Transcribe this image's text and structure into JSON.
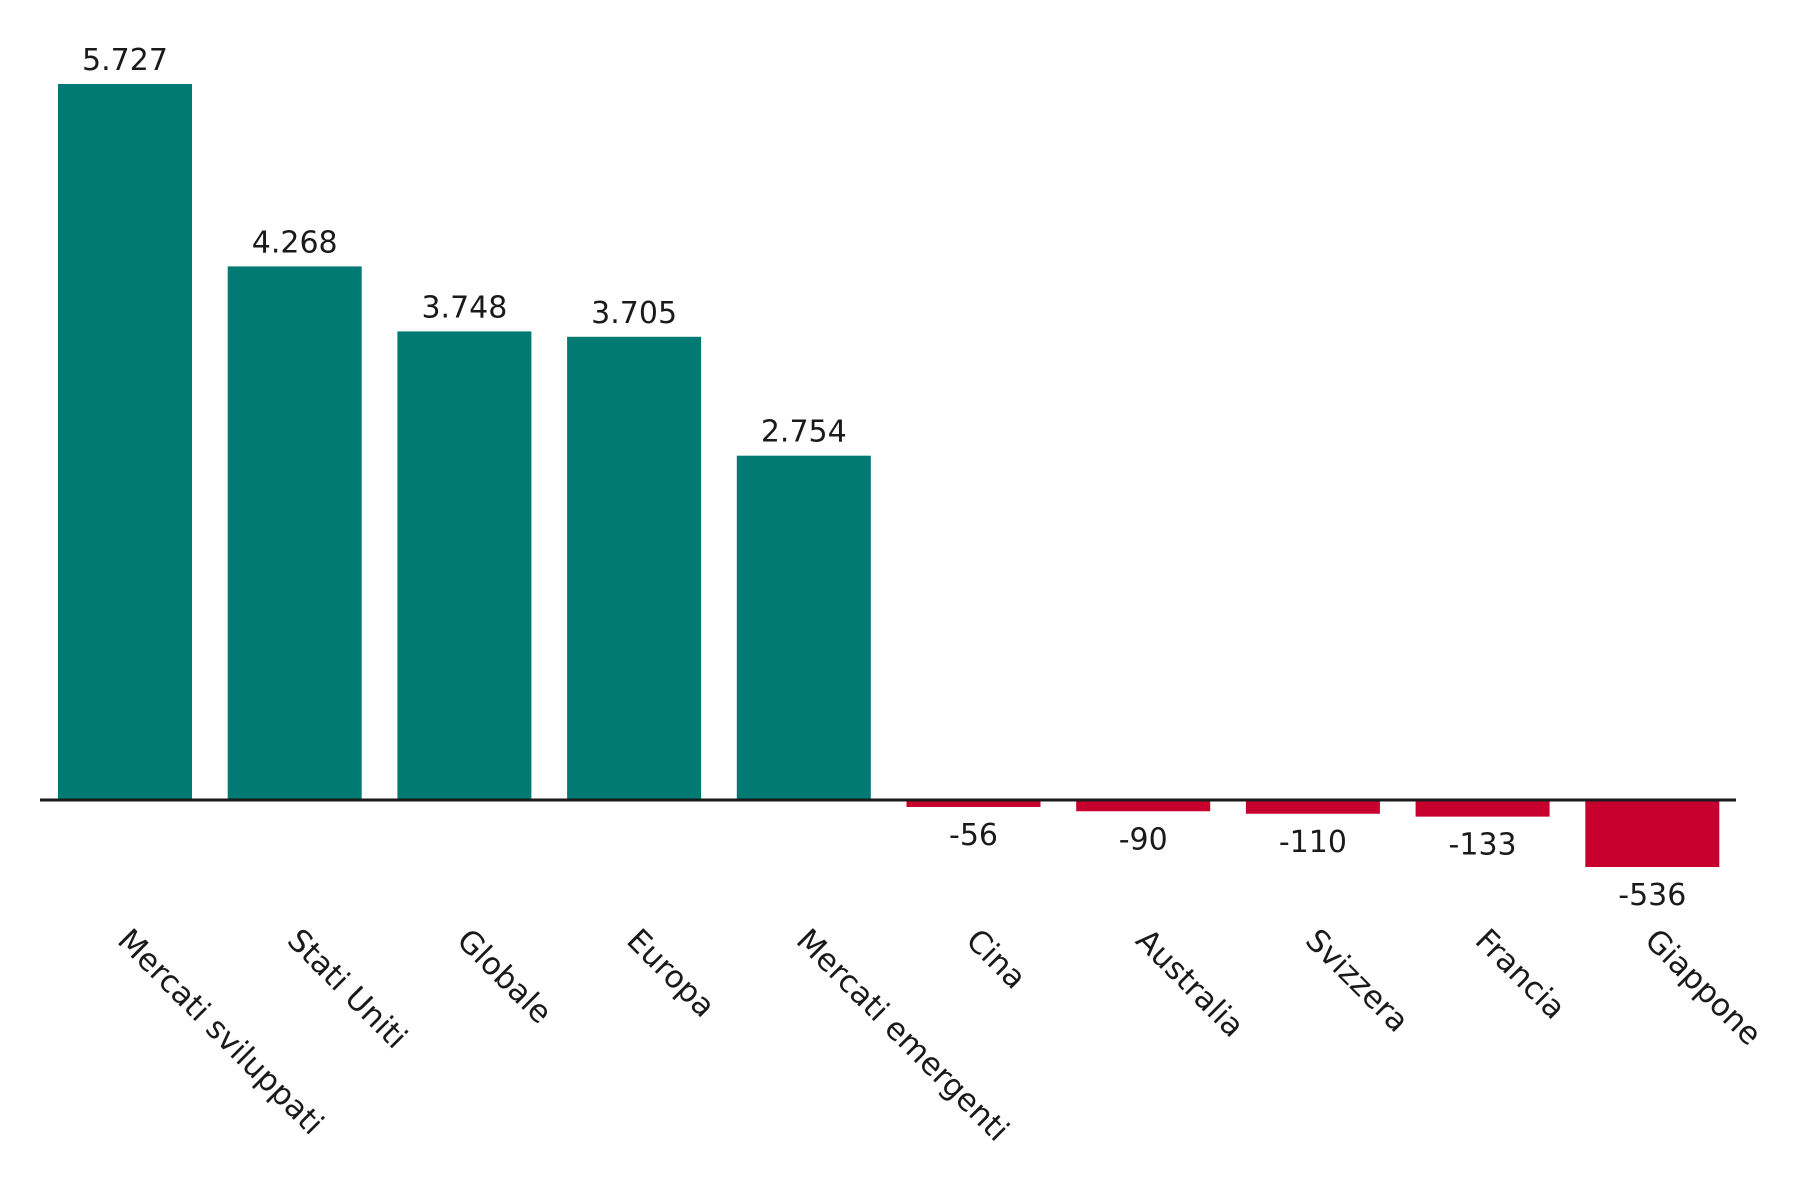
{
  "colors": {
    "positive": "#007a73",
    "negative": "#c8002e",
    "axis": "#1a1a1a",
    "text": "#1a1a1a"
  },
  "chart_data": {
    "type": "bar",
    "categories": [
      "Mercati sviluppati",
      "Stati Uniti",
      "Globale",
      "Europa",
      "Mercati emergenti",
      "Cina",
      "Australia",
      "Svizzera",
      "Francia",
      "Giappone"
    ],
    "values": [
      5727,
      4268,
      3748,
      3705,
      2754,
      -56,
      -90,
      -110,
      -133,
      -536
    ],
    "value_labels": [
      "5.727",
      "4.268",
      "3.748",
      "3.705",
      "2.754",
      "-56",
      "-90",
      "-110",
      "-133",
      "-536"
    ],
    "title": "",
    "xlabel": "",
    "ylabel": "",
    "ylim": [
      -536,
      5727
    ],
    "grid": false,
    "legend": "none"
  }
}
